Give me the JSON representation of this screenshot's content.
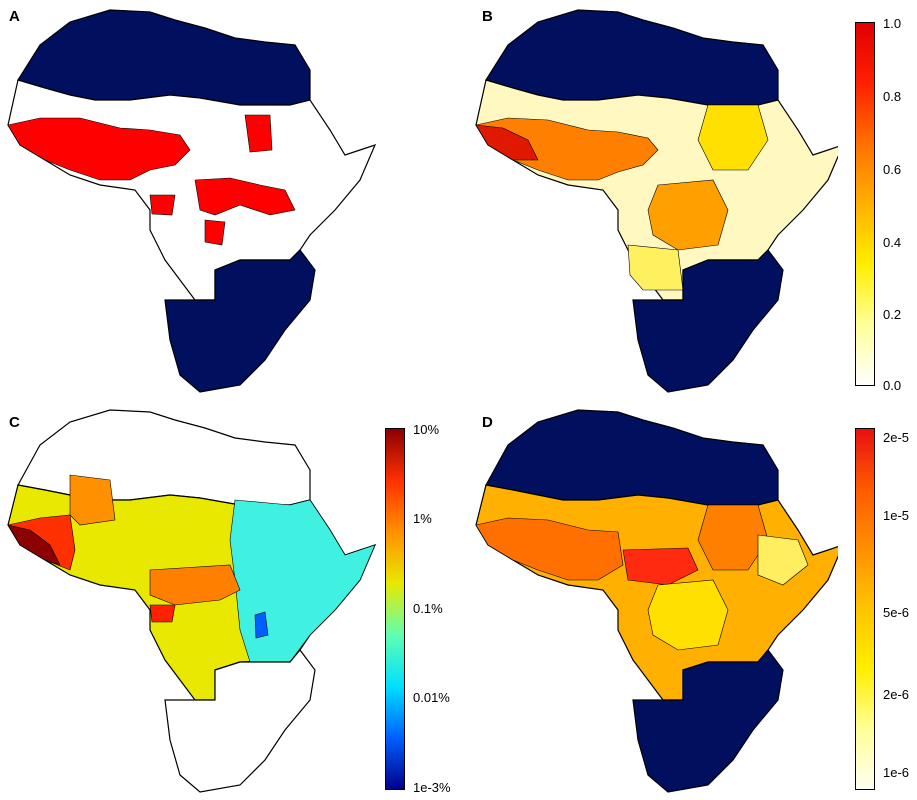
{
  "panels": [
    {
      "letter": "A",
      "colorbar": null
    },
    {
      "letter": "B",
      "colorbar": {
        "scale": "linear",
        "labels": [
          "1.0",
          "0.8",
          "0.6",
          "0.4",
          "0.2",
          "0.0"
        ],
        "colors": [
          "#ffffff",
          "#ffff99",
          "#ffee00",
          "#ffb000",
          "#ff7000",
          "#ff2000",
          "#e00000"
        ]
      }
    },
    {
      "letter": "C",
      "colorbar": {
        "scale": "log",
        "labels": [
          "10%",
          "1%",
          "0.1%",
          "0.01%",
          "1e-3%"
        ],
        "colors": [
          "#8b0000",
          "#ff3000",
          "#ff9000",
          "#e8e800",
          "#60ffb0",
          "#00e0ff",
          "#0060ff",
          "#00008b"
        ]
      }
    },
    {
      "letter": "D",
      "colorbar": {
        "scale": "log",
        "labels": [
          "2e-5",
          "1e-5",
          "5e-6",
          "2e-6",
          "1e-6"
        ],
        "colors": [
          "#e81010",
          "#ff5a00",
          "#ff9000",
          "#ffc400",
          "#ffee00",
          "#ffff99",
          "#fffff0"
        ]
      }
    }
  ],
  "colors": {
    "excluded": "#00105e",
    "outline": "#000000",
    "panelA_fill": "#ff0000",
    "blank": "#ffffff"
  }
}
